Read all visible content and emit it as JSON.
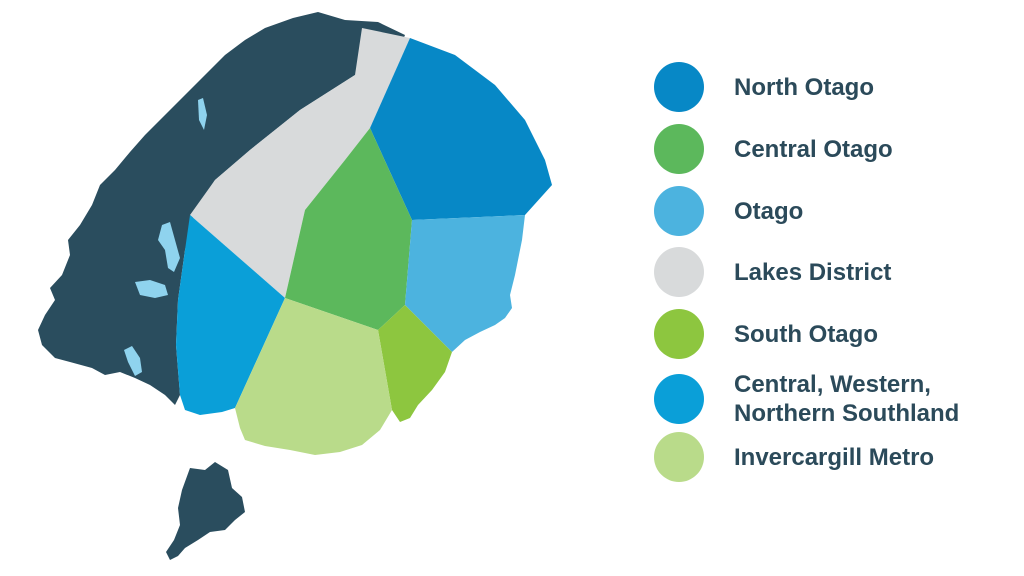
{
  "colors": {
    "coast": "#2a4d5e",
    "lake": "#8fd3ee",
    "background": "#ffffff",
    "label_text": "#2b4a5a"
  },
  "legend": [
    {
      "id": "north-otago",
      "label": "North Otago",
      "color": "#0788c6"
    },
    {
      "id": "central-otago",
      "label": "Central Otago",
      "color": "#5cb85c"
    },
    {
      "id": "otago",
      "label": "Otago",
      "color": "#4cb3df"
    },
    {
      "id": "lakes-district",
      "label": "Lakes District",
      "color": "#d8dadb"
    },
    {
      "id": "south-otago",
      "label": "South Otago",
      "color": "#8dc63f"
    },
    {
      "id": "central-western-northern-southland",
      "label": "Central, Western,\nNorthern Southland",
      "color": "#0a9fd8"
    },
    {
      "id": "invercargill-metro",
      "label": "Invercargill Metro",
      "color": "#b9db8a"
    }
  ]
}
